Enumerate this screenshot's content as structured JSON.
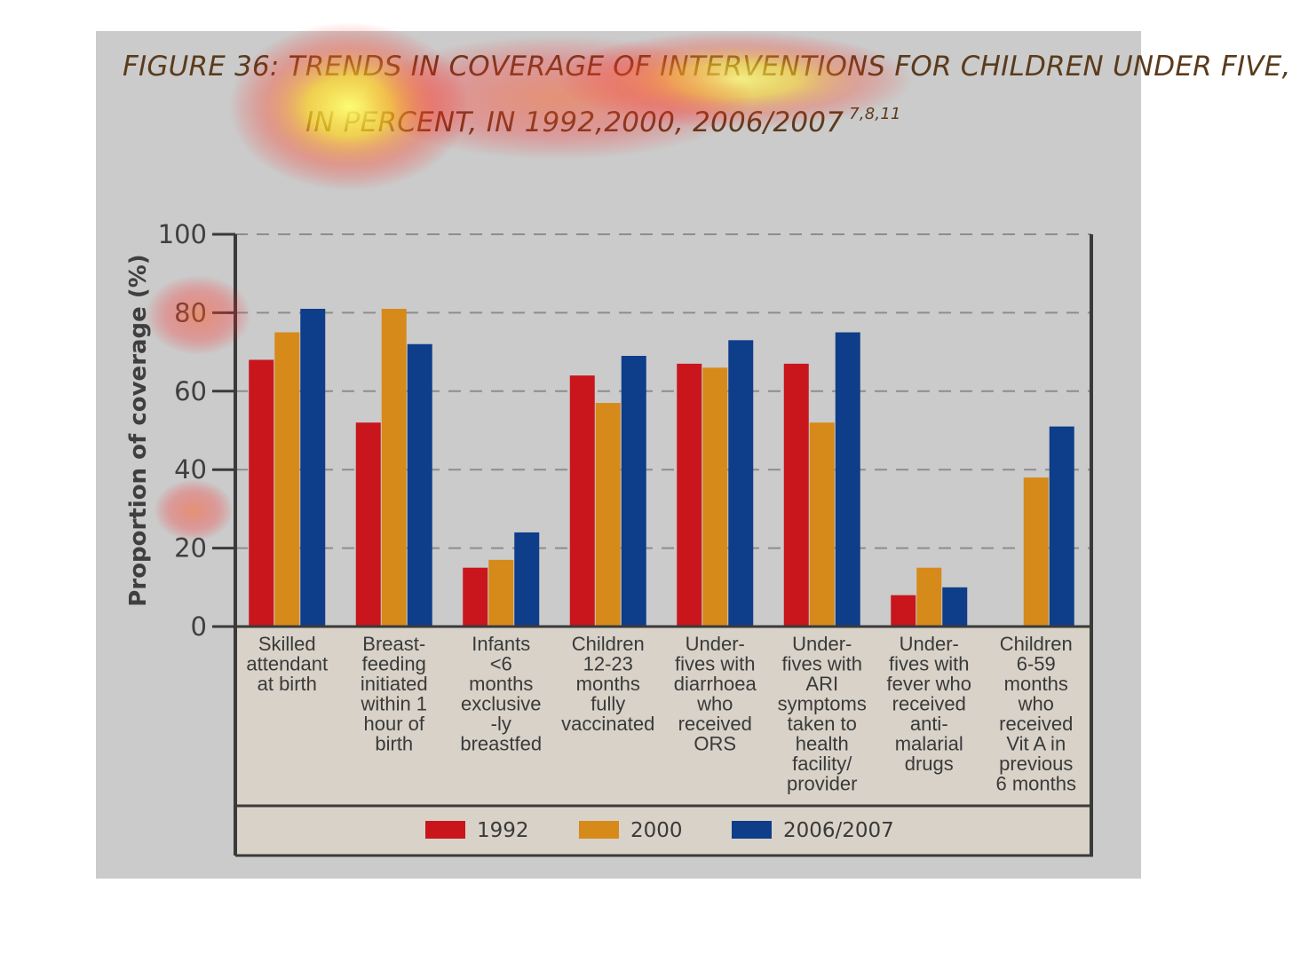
{
  "figure": {
    "title_text": "FIGURE 36: TRENDS IN COVERAGE OF INTERVENTIONS FOR CHILDREN UNDER FIVE, IN PERCENT, IN 1992,2000, 2006/2007",
    "title_refs": "7,8,11"
  },
  "chart_data": {
    "type": "bar",
    "title": "",
    "ylabel": "Proportion of coverage (%)",
    "xlabel": "",
    "ylim": [
      0,
      100
    ],
    "yticks": [
      0,
      20,
      40,
      60,
      80,
      100
    ],
    "grid": true,
    "legend_position": "bottom",
    "categories": [
      [
        "Skilled",
        "attendant",
        "at birth"
      ],
      [
        "Breast-",
        "feeding",
        "initiated",
        "within 1",
        "hour of",
        "birth"
      ],
      [
        "Infants",
        "<6",
        "months",
        "exclusive",
        "-ly",
        "breastfed"
      ],
      [
        "Children",
        "12-23",
        "months",
        "fully",
        "vaccinated"
      ],
      [
        "Under-",
        "fives with",
        "diarrhoea",
        "who",
        "received",
        "ORS"
      ],
      [
        "Under-",
        "fives with",
        "ARI",
        "symptoms",
        "taken to",
        "health",
        "facility/",
        "provider"
      ],
      [
        "Under-",
        "fives with",
        "fever who",
        "received",
        "anti-",
        "malarial",
        "drugs"
      ],
      [
        "Children",
        "6-59",
        "months",
        "who",
        "received",
        "Vit A in",
        "previous",
        "6 months"
      ]
    ],
    "series": [
      {
        "name": "1992",
        "color": "#c8161c",
        "values": [
          68,
          52,
          15,
          64,
          67,
          67,
          8,
          null
        ]
      },
      {
        "name": "2000",
        "color": "#d68a1a",
        "values": [
          75,
          81,
          17,
          57,
          66,
          52,
          15,
          38
        ]
      },
      {
        "name": "2006/2007",
        "color": "#0e3d8a",
        "values": [
          81,
          72,
          24,
          69,
          73,
          75,
          10,
          51
        ]
      }
    ]
  }
}
